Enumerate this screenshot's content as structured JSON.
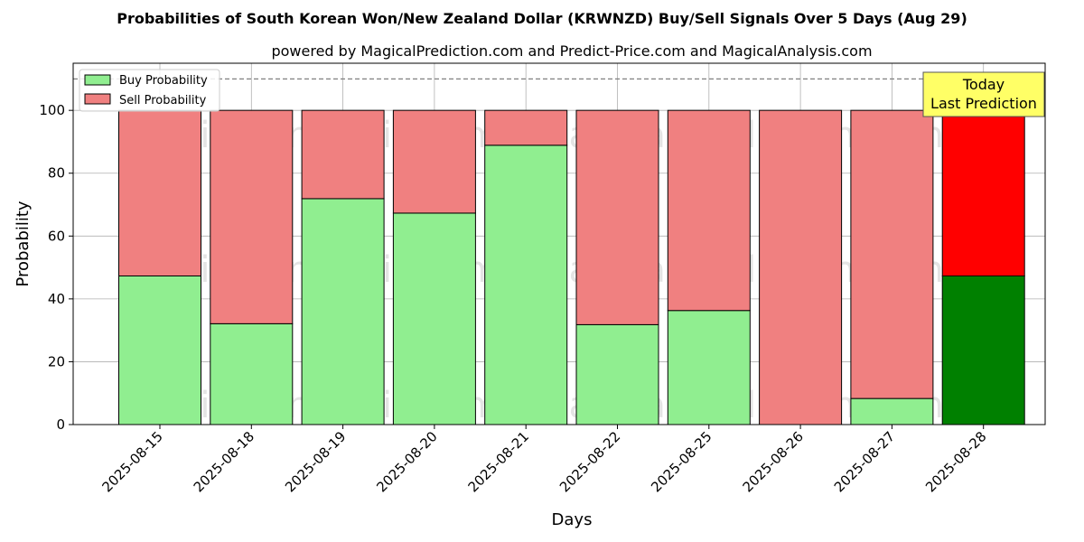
{
  "chart_data": {
    "type": "bar",
    "stacked": true,
    "title": "Probabilities of South Korean Won/New Zealand Dollar (KRWNZD) Buy/Sell Signals Over 5 Days (Aug 29)",
    "subtitle": "powered by MagicalPrediction.com and Predict-Price.com and MagicalAnalysis.com",
    "xlabel": "Days",
    "ylabel": "Probability",
    "ylim": [
      0,
      115
    ],
    "yticks": [
      0,
      20,
      40,
      60,
      80,
      100
    ],
    "grid": true,
    "legend_position": "top-left",
    "categories": [
      "2025-08-15",
      "2025-08-18",
      "2025-08-19",
      "2025-08-20",
      "2025-08-21",
      "2025-08-22",
      "2025-08-25",
      "2025-08-26",
      "2025-08-27",
      "2025-08-28"
    ],
    "series": [
      {
        "name": "Buy Probability",
        "values": [
          47.3,
          32.1,
          71.9,
          67.3,
          88.9,
          31.8,
          36.3,
          0,
          8.3,
          47.3
        ],
        "color": "#90ee90",
        "highlight_color": "#008000"
      },
      {
        "name": "Sell Probability",
        "values": [
          52.7,
          67.9,
          28.1,
          32.7,
          11.1,
          68.2,
          63.7,
          100,
          91.7,
          52.7
        ],
        "color": "#f08080",
        "highlight_color": "#ff0000"
      }
    ],
    "highlight_index": 9,
    "reference_line": {
      "y": 110,
      "style": "dashed",
      "color": "#808080"
    },
    "annotation": {
      "lines": [
        "Today",
        "Last Prediction"
      ],
      "background": "#ffff66"
    },
    "watermarks": [
      "MagicalAnalysis.com",
      "MagicalPrediction.com",
      "MagicalAnalysis.com",
      "MagicalPrediction.com",
      "MagicalAnalysis.com",
      "MagicalPrediction.com"
    ]
  }
}
